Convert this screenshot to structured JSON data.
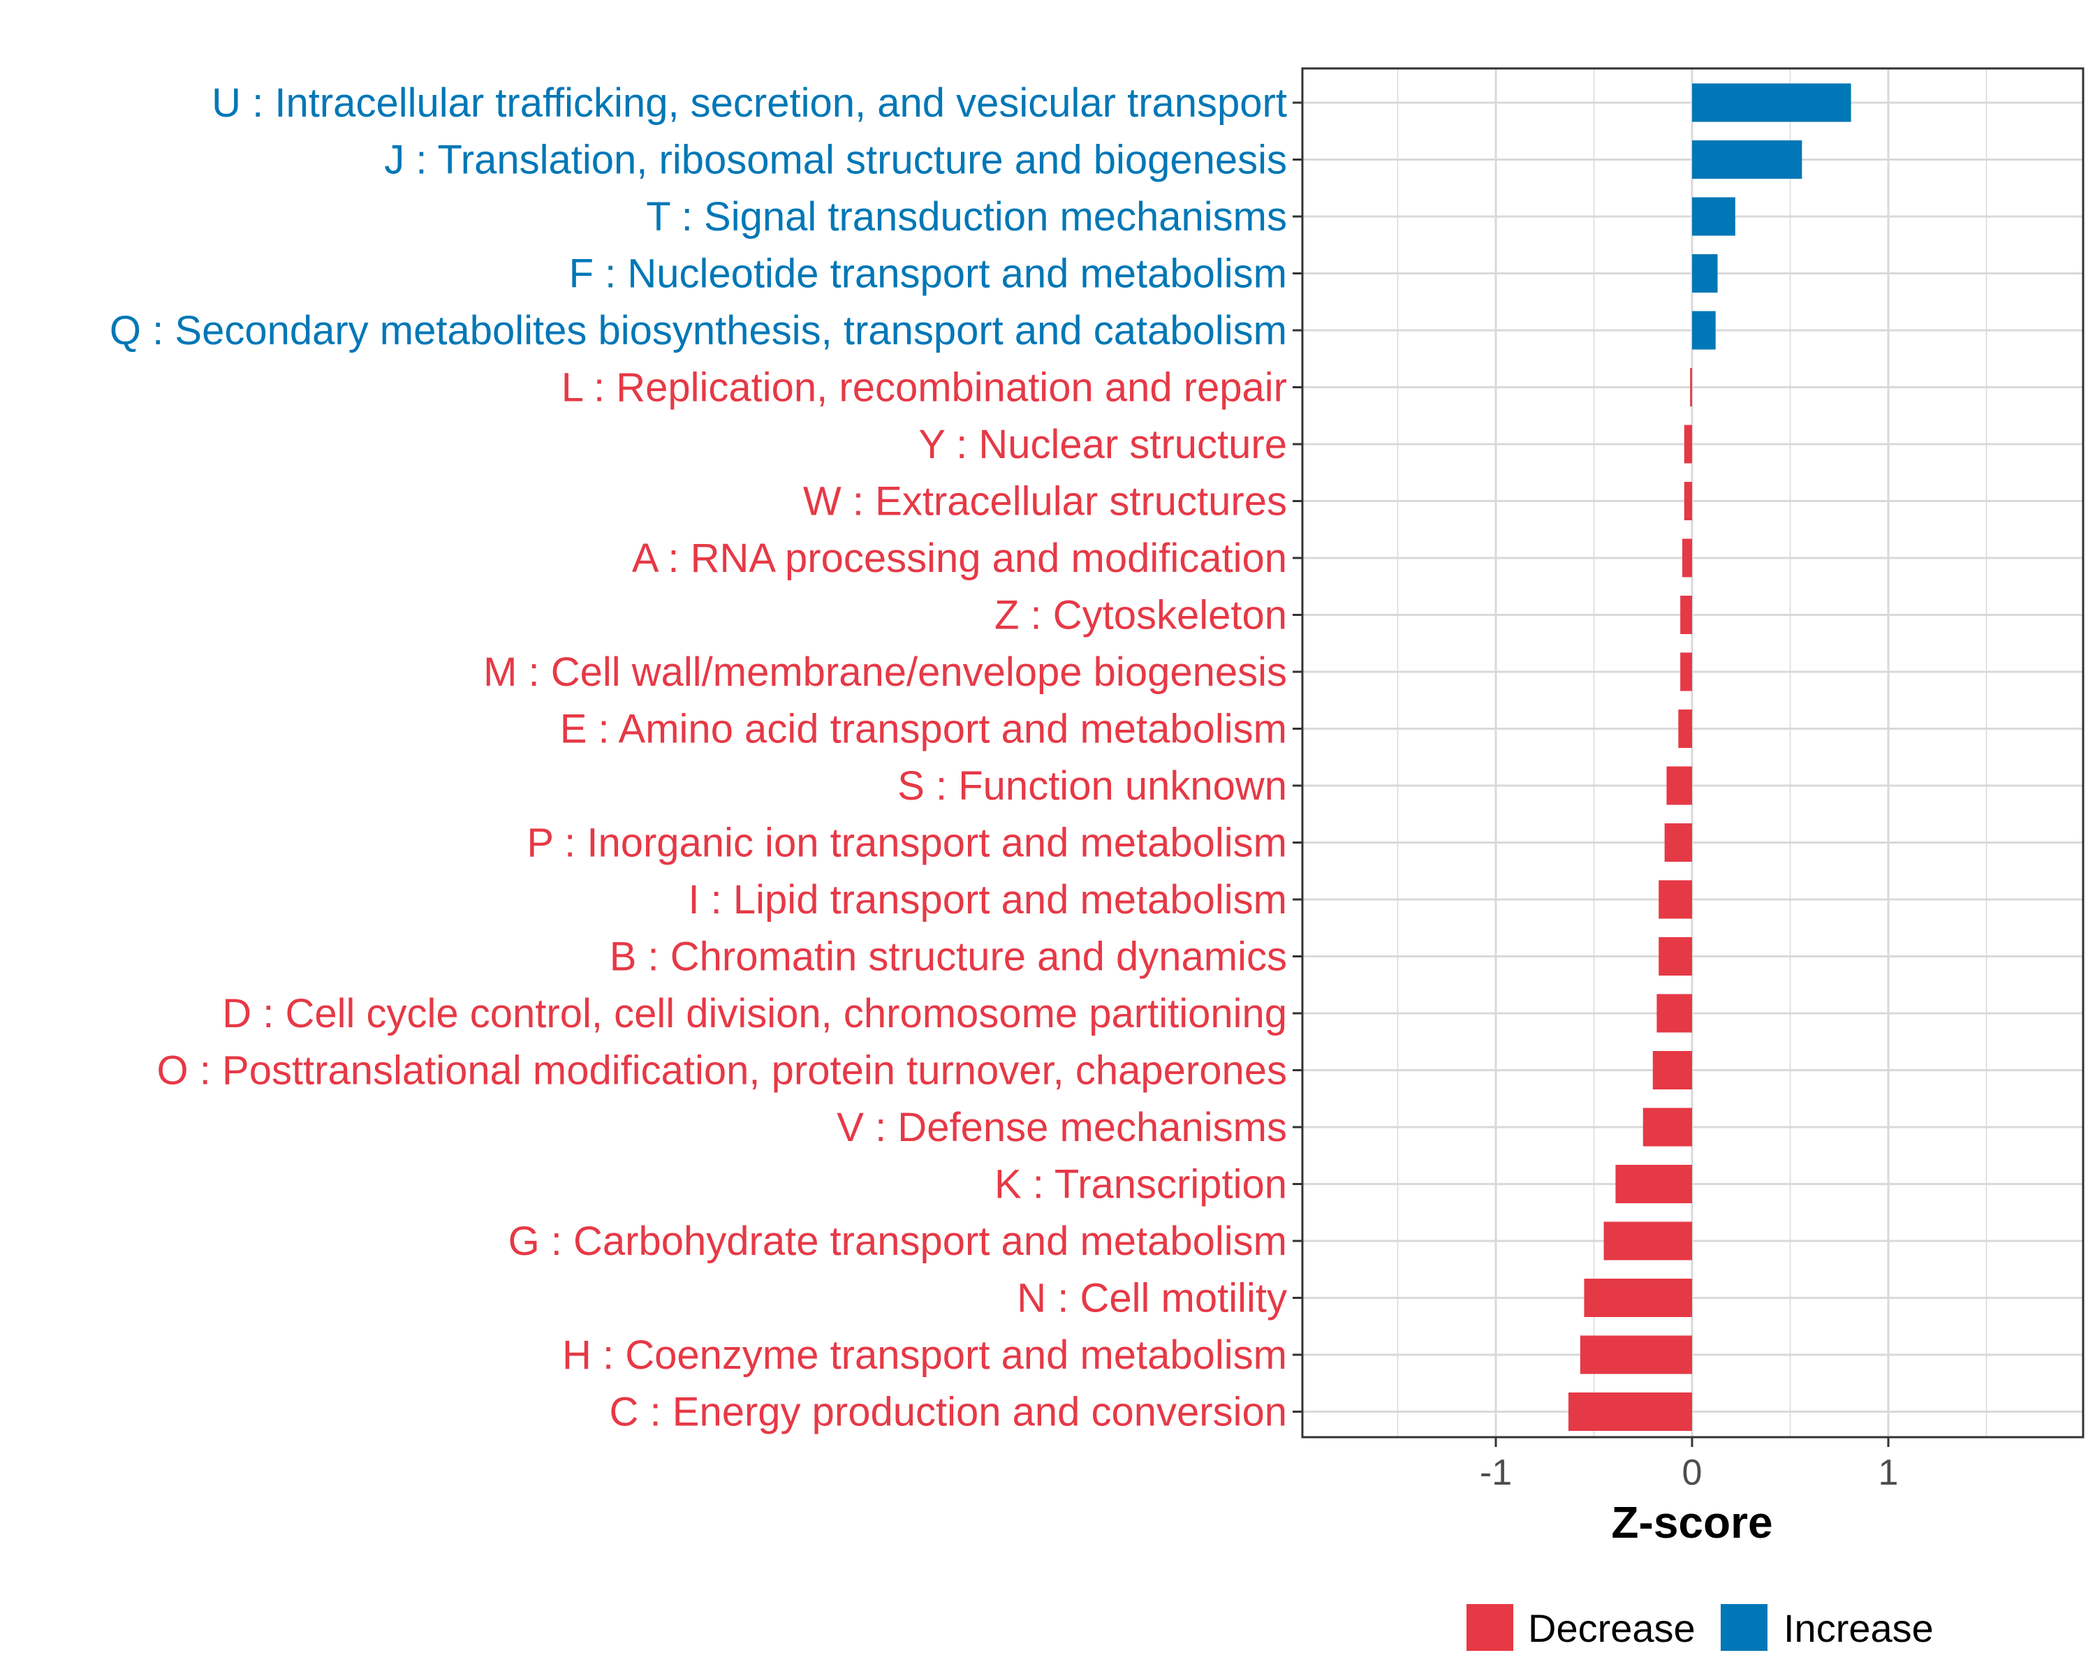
{
  "chart_data": {
    "type": "bar",
    "orientation": "horizontal",
    "title": "",
    "xlabel": "Z-score",
    "ylabel": "",
    "xlim": [
      -2.0,
      2.0
    ],
    "x_ticks": [
      -1,
      0,
      1
    ],
    "x_tick_labels": [
      "-1",
      "0",
      "1"
    ],
    "grid": true,
    "legend_position": "bottom",
    "colors": {
      "Decrease": "#E63946",
      "Increase": "#0077B6"
    },
    "legend": [
      {
        "name": "Decrease",
        "color": "#E63946"
      },
      {
        "name": "Increase",
        "color": "#0077B6"
      }
    ],
    "categories": [
      "U : Intracellular trafficking, secretion, and vesicular transport",
      "J : Translation, ribosomal structure and biogenesis",
      "T : Signal transduction mechanisms",
      "F : Nucleotide transport and metabolism",
      "Q : Secondary metabolites biosynthesis, transport and catabolism",
      "L : Replication, recombination and repair",
      "Y : Nuclear structure",
      "W : Extracellular structures",
      "A : RNA processing and modification",
      "Z : Cytoskeleton",
      "M : Cell wall/membrane/envelope biogenesis",
      "E : Amino acid transport and metabolism",
      "S : Function unknown",
      "P : Inorganic ion transport and metabolism",
      "I : Lipid transport and metabolism",
      "B : Chromatin structure and dynamics",
      "D : Cell cycle control, cell division, chromosome partitioning",
      "O : Posttranslational modification, protein turnover, chaperones",
      "V : Defense mechanisms",
      "K : Transcription",
      "G : Carbohydrate transport and metabolism",
      "N : Cell motility",
      "H : Coenzyme transport and metabolism",
      "C : Energy production and conversion"
    ],
    "values": [
      0.81,
      0.56,
      0.22,
      0.13,
      0.12,
      -0.01,
      -0.04,
      -0.04,
      -0.05,
      -0.06,
      -0.06,
      -0.07,
      -0.13,
      -0.14,
      -0.17,
      -0.17,
      -0.18,
      -0.2,
      -0.25,
      -0.39,
      -0.45,
      -0.55,
      -0.57,
      -0.63
    ],
    "groups": [
      "Increase",
      "Increase",
      "Increase",
      "Increase",
      "Increase",
      "Decrease",
      "Decrease",
      "Decrease",
      "Decrease",
      "Decrease",
      "Decrease",
      "Decrease",
      "Decrease",
      "Decrease",
      "Decrease",
      "Decrease",
      "Decrease",
      "Decrease",
      "Decrease",
      "Decrease",
      "Decrease",
      "Decrease",
      "Decrease",
      "Decrease"
    ]
  }
}
